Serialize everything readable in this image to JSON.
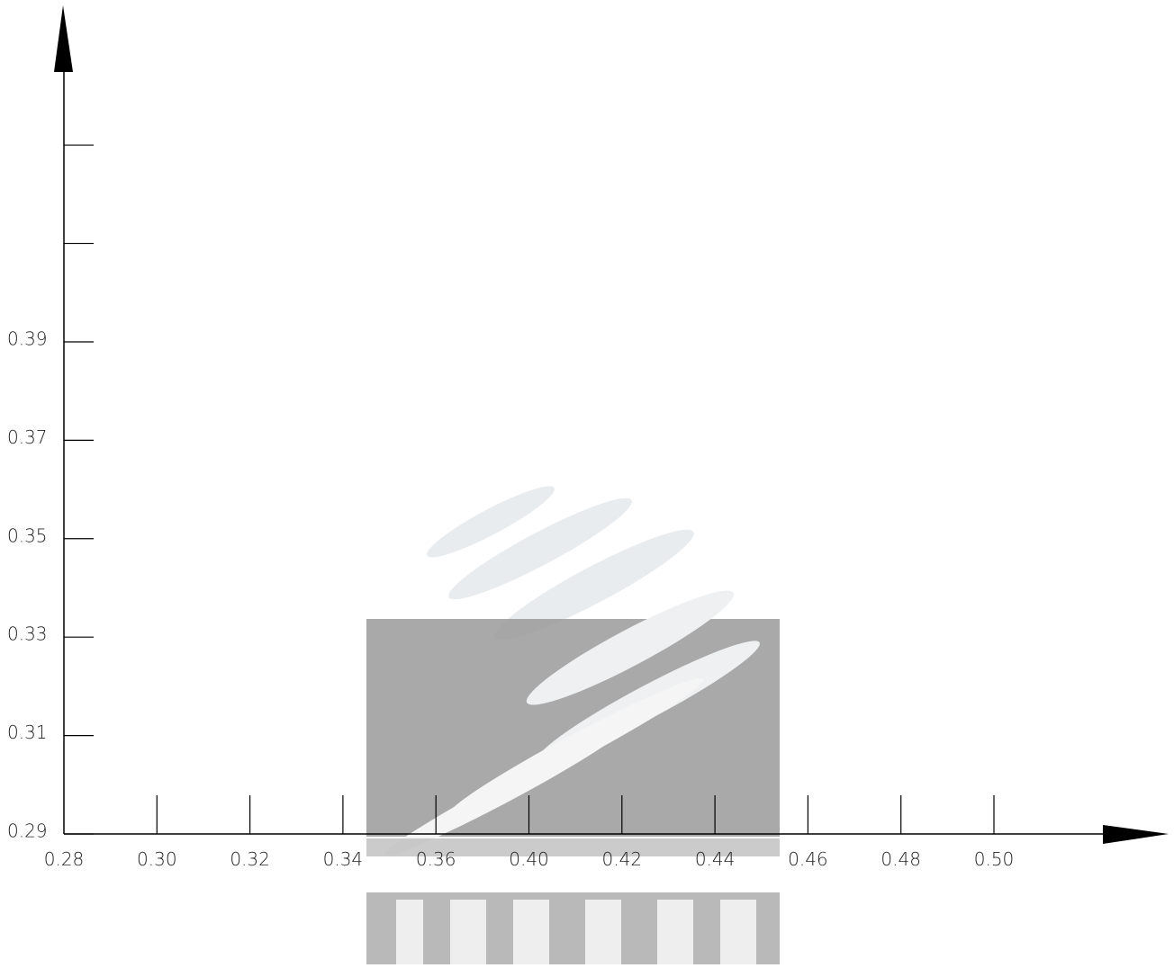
{
  "chart_data": {
    "type": "axes",
    "categories": [
      "0.28",
      "0.30",
      "0.32",
      "0.34",
      "0.36",
      "0.40",
      "0.42",
      "0.44",
      "0.46",
      "0.48",
      "0.50"
    ],
    "ylim": [
      0.29,
      0.458
    ],
    "yticks": [
      0.29,
      0.31,
      0.33,
      0.35,
      0.37,
      0.39
    ],
    "yticks_unlabeled": [
      0.41,
      0.43
    ]
  }
}
